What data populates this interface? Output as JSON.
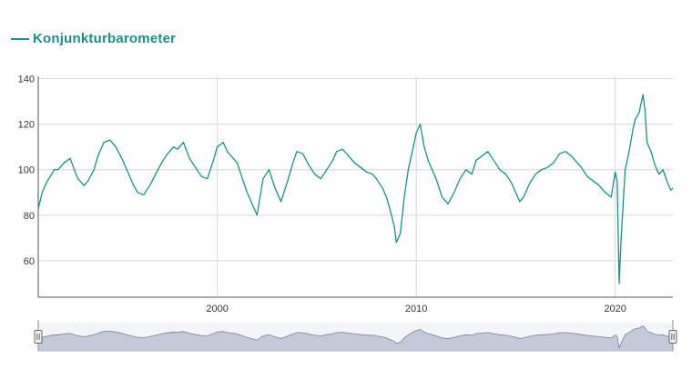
{
  "chart_data": {
    "type": "line",
    "title": "",
    "xlabel": "",
    "ylabel": "",
    "legend": {
      "position": "top-left"
    },
    "grid": true,
    "xlim": [
      1991.0,
      2022.9
    ],
    "ylim": [
      44,
      141
    ],
    "x_ticks": [
      2000,
      2010,
      2020
    ],
    "x_tick_labels": [
      "2000",
      "2010",
      "2020"
    ],
    "y_ticks": [
      60,
      80,
      100,
      120,
      140
    ],
    "y_tick_labels": [
      "60",
      "80",
      "100",
      "120",
      "140"
    ],
    "series": [
      {
        "name": "Konjunkturbarometer",
        "color": "#1a8f8a",
        "x": [
          1991.0,
          1991.2,
          1991.4,
          1991.6,
          1991.8,
          1992.0,
          1992.3,
          1992.6,
          1992.9,
          1993.0,
          1993.3,
          1993.5,
          1993.8,
          1994.0,
          1994.3,
          1994.6,
          1994.9,
          1995.2,
          1995.5,
          1995.8,
          1996.0,
          1996.3,
          1996.6,
          1996.9,
          1997.2,
          1997.5,
          1997.8,
          1998.0,
          1998.3,
          1998.6,
          1998.9,
          1999.2,
          1999.5,
          1999.8,
          2000.0,
          2000.3,
          2000.5,
          2000.8,
          2001.0,
          2001.3,
          2001.5,
          2001.8,
          2002.0,
          2002.3,
          2002.6,
          2002.9,
          2003.2,
          2003.5,
          2003.8,
          2004.0,
          2004.3,
          2004.6,
          2004.9,
          2005.2,
          2005.5,
          2005.8,
          2006.0,
          2006.3,
          2006.6,
          2006.9,
          2007.2,
          2007.5,
          2007.8,
          2008.0,
          2008.3,
          2008.5,
          2008.7,
          2008.9,
          2009.0,
          2009.2,
          2009.4,
          2009.6,
          2009.8,
          2010.0,
          2010.2,
          2010.4,
          2010.6,
          2010.8,
          2011.0,
          2011.3,
          2011.6,
          2011.9,
          2012.2,
          2012.5,
          2012.8,
          2013.0,
          2013.3,
          2013.6,
          2013.9,
          2014.2,
          2014.5,
          2014.8,
          2015.0,
          2015.2,
          2015.4,
          2015.7,
          2016.0,
          2016.3,
          2016.6,
          2016.9,
          2017.2,
          2017.5,
          2017.8,
          2018.0,
          2018.3,
          2018.6,
          2018.9,
          2019.2,
          2019.5,
          2019.8,
          2020.0,
          2020.1,
          2020.2,
          2020.3,
          2020.5,
          2020.7,
          2020.9,
          2021.0,
          2021.2,
          2021.4,
          2021.5,
          2021.6,
          2021.8,
          2022.0,
          2022.2,
          2022.4,
          2022.6,
          2022.8,
          2022.9
        ],
        "values": [
          83,
          90,
          94,
          97,
          100,
          100,
          103,
          105,
          98,
          96,
          93,
          95,
          100,
          106,
          112,
          113,
          110,
          105,
          99,
          93,
          90,
          89,
          93,
          98,
          103,
          107,
          110,
          109,
          112,
          105,
          101,
          97,
          96,
          104,
          110,
          112,
          108,
          105,
          103,
          95,
          90,
          84,
          80,
          96,
          100,
          92,
          86,
          94,
          103,
          108,
          107,
          102,
          98,
          96,
          100,
          104,
          108,
          109,
          106,
          103,
          101,
          99,
          98,
          96,
          92,
          88,
          82,
          75,
          68,
          72,
          88,
          100,
          108,
          116,
          120,
          110,
          104,
          100,
          96,
          88,
          85,
          90,
          96,
          100,
          98,
          104,
          106,
          108,
          104,
          100,
          98,
          94,
          90,
          86,
          88,
          94,
          98,
          100,
          101,
          103,
          107,
          108,
          106,
          104,
          101,
          97,
          95,
          93,
          90,
          88,
          99,
          95,
          50,
          70,
          100,
          108,
          118,
          122,
          125,
          133,
          126,
          112,
          108,
          102,
          98,
          100,
          95,
          91,
          92
        ]
      }
    ]
  },
  "navigator": {
    "handle_left": "handle-grip-icon",
    "handle_right": "handle-grip-icon",
    "range": [
      1991.0,
      2022.9
    ]
  }
}
